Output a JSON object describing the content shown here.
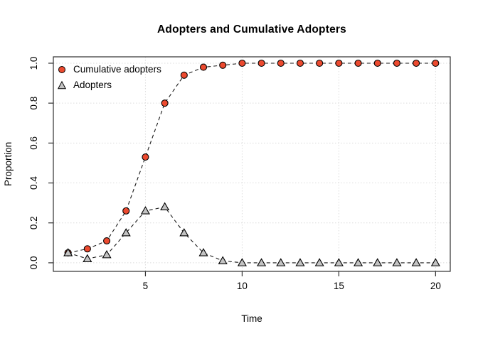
{
  "chart_data": {
    "type": "line",
    "title": "Adopters and Cumulative Adopters",
    "xlabel": "Time",
    "ylabel": "Proportion",
    "x": [
      1,
      2,
      3,
      4,
      5,
      6,
      7,
      8,
      9,
      10,
      11,
      12,
      13,
      14,
      15,
      16,
      17,
      18,
      19,
      20
    ],
    "series": [
      {
        "name": "Cumulative adopters",
        "marker": "circle",
        "marker_fill": "#EC4A2F",
        "marker_stroke": "#000000",
        "line_style": "dashed",
        "values": [
          0.05,
          0.07,
          0.11,
          0.26,
          0.53,
          0.8,
          0.94,
          0.98,
          0.99,
          1.0,
          1.0,
          1.0,
          1.0,
          1.0,
          1.0,
          1.0,
          1.0,
          1.0,
          1.0,
          1.0
        ]
      },
      {
        "name": "Adopters",
        "marker": "triangle",
        "marker_fill": "#C3C3C3",
        "marker_stroke": "#000000",
        "line_style": "dashed",
        "values": [
          0.05,
          0.02,
          0.04,
          0.15,
          0.26,
          0.28,
          0.15,
          0.05,
          0.01,
          0.0,
          0.0,
          0.0,
          0.0,
          0.0,
          0.0,
          0.0,
          0.0,
          0.0,
          0.0,
          0.0
        ]
      }
    ],
    "x_ticks": [
      5,
      10,
      15,
      20
    ],
    "y_ticks": [
      0.0,
      0.2,
      0.4,
      0.6,
      0.8,
      1.0
    ],
    "xlim": [
      0.24,
      20.76
    ],
    "ylim": [
      -0.043,
      1.032
    ],
    "grid": "dotted",
    "grid_color": "#DCDCDC",
    "line_color": "#1A1A1A",
    "box_color": "#2F2F2F",
    "legend_position": "top-left"
  }
}
